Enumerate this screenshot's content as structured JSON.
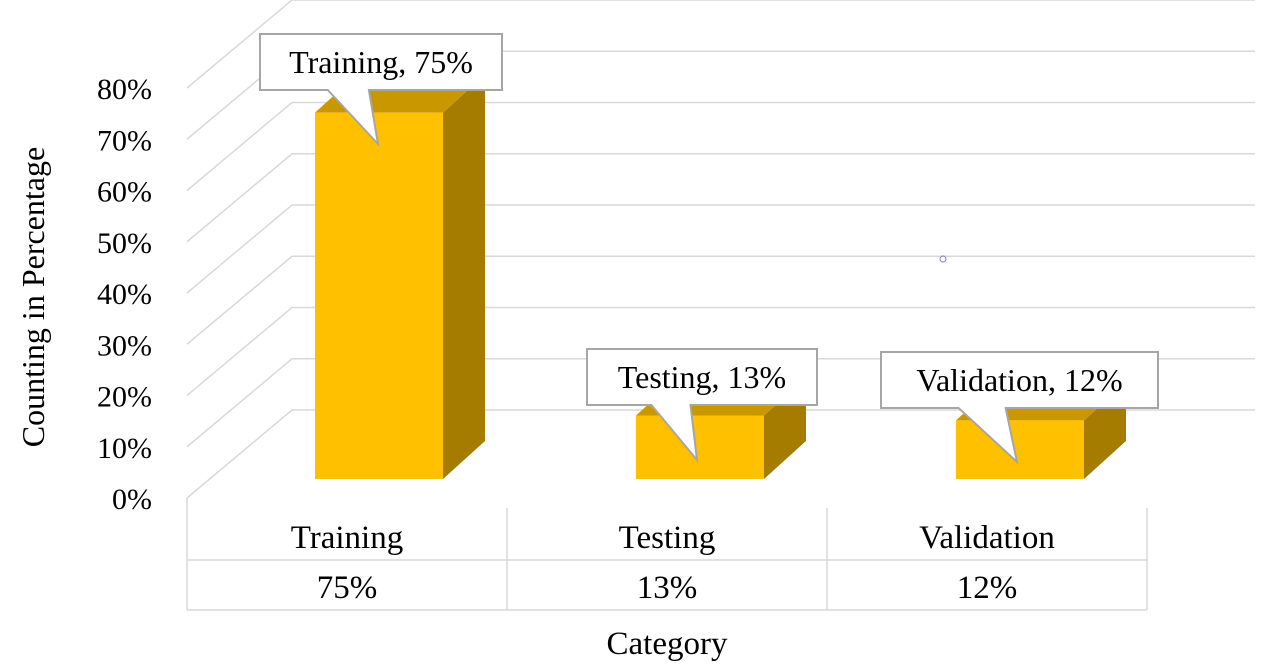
{
  "chart_data": {
    "type": "bar",
    "style": "3d-column",
    "categories": [
      "Training",
      "Testing",
      "Validation"
    ],
    "values": [
      75,
      13,
      12
    ],
    "unit": "%",
    "ylabel": "Counting in Percentage",
    "xlabel": "Category",
    "ylim": [
      0,
      80
    ],
    "yticks": [
      0,
      10,
      20,
      30,
      40,
      50,
      60,
      70,
      80
    ],
    "ytick_labels": [
      "0%",
      "10%",
      "20%",
      "30%",
      "40%",
      "50%",
      "60%",
      "70%",
      "80%"
    ],
    "data_labels": [
      "Training, 75%",
      "Testing, 13%",
      "Validation, 12%"
    ],
    "data_table_values": [
      "75%",
      "13%",
      "12%"
    ],
    "grid": true,
    "legend": "none",
    "colors": {
      "bar_front": "#FFC000",
      "bar_side": "#A57C00",
      "bar_top": "#C99700",
      "grid": "#D9D9D9",
      "table_border": "#D9D9D9",
      "callout_border": "#A6A6A6"
    }
  }
}
